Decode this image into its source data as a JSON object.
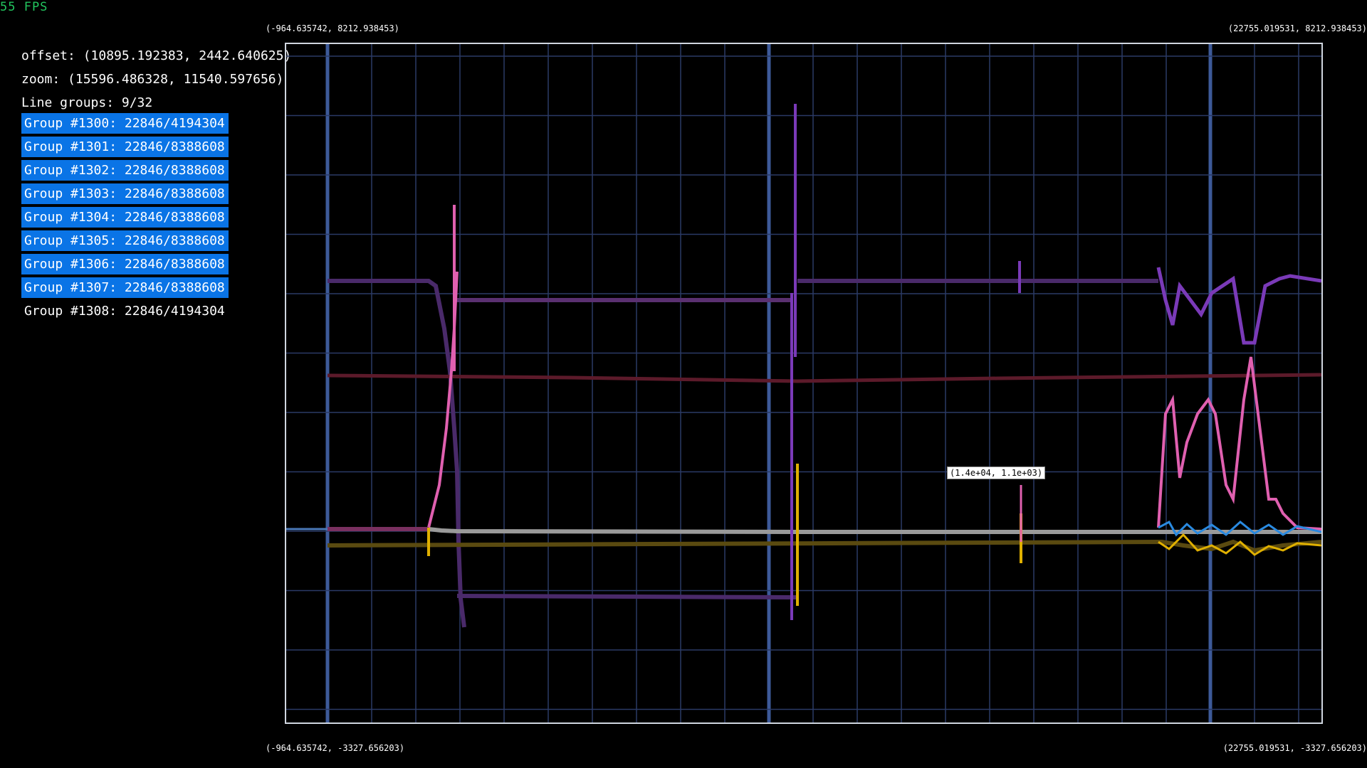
{
  "fps": "55 FPS",
  "corners": {
    "top_left": "(-964.635742, 8212.938453)",
    "top_right": "(22755.019531, 8212.938453)",
    "bottom_left": "(-964.635742, -3327.656203)",
    "bottom_right": "(22755.019531, -3327.656203)"
  },
  "info": {
    "offset": "offset: (10895.192383, 2442.640625)",
    "zoom": "zoom: (15596.486328, 11540.597656)",
    "line_groups": "Line groups: 9/32"
  },
  "groups": [
    {
      "label": "Group #1300: 22846/4194304",
      "selected": true
    },
    {
      "label": "Group #1301: 22846/8388608",
      "selected": true
    },
    {
      "label": "Group #1302: 22846/8388608",
      "selected": true
    },
    {
      "label": "Group #1303: 22846/8388608",
      "selected": true
    },
    {
      "label": "Group #1304: 22846/8388608",
      "selected": true
    },
    {
      "label": "Group #1305: 22846/8388608",
      "selected": true
    },
    {
      "label": "Group #1306: 22846/8388608",
      "selected": true
    },
    {
      "label": "Group #1307: 22846/8388608",
      "selected": true
    },
    {
      "label": "Group #1308: 22846/4194304",
      "selected": false
    }
  ],
  "tooltip": "(1.4e+04, 1.1e+03)",
  "colors": {
    "selected_bg": "#0a74e6",
    "grid": "#2b3a66",
    "grid_major": "#3d5a99",
    "fps": "#22c55e"
  }
}
